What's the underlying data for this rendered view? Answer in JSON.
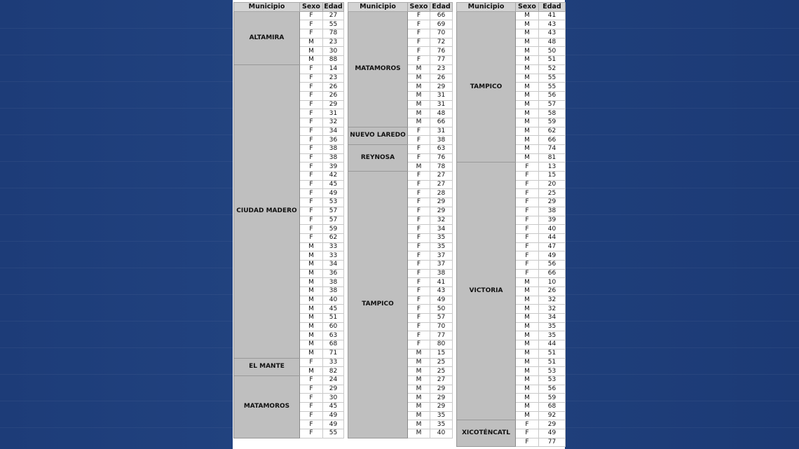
{
  "headers": {
    "municipio": "Municipio",
    "sexo": "Sexo",
    "edad": "Edad"
  },
  "tables": [
    {
      "groups": [
        {
          "municipio": "ALTAMIRA",
          "rows": [
            [
              "F",
              "27"
            ],
            [
              "F",
              "55"
            ],
            [
              "F",
              "78"
            ],
            [
              "M",
              "23"
            ],
            [
              "M",
              "30"
            ],
            [
              "M",
              "88"
            ]
          ]
        },
        {
          "municipio": "CIUDAD MADERO",
          "rows": [
            [
              "F",
              "14"
            ],
            [
              "F",
              "23"
            ],
            [
              "F",
              "26"
            ],
            [
              "F",
              "26"
            ],
            [
              "F",
              "29"
            ],
            [
              "F",
              "31"
            ],
            [
              "F",
              "32"
            ],
            [
              "F",
              "34"
            ],
            [
              "F",
              "36"
            ],
            [
              "F",
              "38"
            ],
            [
              "F",
              "38"
            ],
            [
              "F",
              "39"
            ],
            [
              "F",
              "42"
            ],
            [
              "F",
              "45"
            ],
            [
              "F",
              "49"
            ],
            [
              "F",
              "53"
            ],
            [
              "F",
              "57"
            ],
            [
              "F",
              "57"
            ],
            [
              "F",
              "59"
            ],
            [
              "F",
              "62"
            ],
            [
              "M",
              "33"
            ],
            [
              "M",
              "33"
            ],
            [
              "M",
              "34"
            ],
            [
              "M",
              "36"
            ],
            [
              "M",
              "38"
            ],
            [
              "M",
              "38"
            ],
            [
              "M",
              "40"
            ],
            [
              "M",
              "45"
            ],
            [
              "M",
              "51"
            ],
            [
              "M",
              "60"
            ],
            [
              "M",
              "63"
            ],
            [
              "M",
              "68"
            ],
            [
              "M",
              "71"
            ]
          ]
        },
        {
          "municipio": "EL MANTE",
          "rows": [
            [
              "F",
              "33"
            ],
            [
              "M",
              "82"
            ]
          ]
        },
        {
          "municipio": "MATAMOROS",
          "rows": [
            [
              "F",
              "24"
            ],
            [
              "F",
              "29"
            ],
            [
              "F",
              "30"
            ],
            [
              "F",
              "45"
            ],
            [
              "F",
              "49"
            ],
            [
              "F",
              "49"
            ],
            [
              "F",
              "55"
            ]
          ]
        }
      ]
    },
    {
      "groups": [
        {
          "municipio": "MATAMOROS",
          "rows": [
            [
              "F",
              "66"
            ],
            [
              "F",
              "69"
            ],
            [
              "F",
              "70"
            ],
            [
              "F",
              "72"
            ],
            [
              "F",
              "76"
            ],
            [
              "F",
              "77"
            ],
            [
              "M",
              "23"
            ],
            [
              "M",
              "26"
            ],
            [
              "M",
              "29"
            ],
            [
              "M",
              "31"
            ],
            [
              "M",
              "31"
            ],
            [
              "M",
              "48"
            ],
            [
              "M",
              "66"
            ]
          ]
        },
        {
          "municipio": "NUEVO LAREDO",
          "rows": [
            [
              "F",
              "31"
            ],
            [
              "F",
              "38"
            ]
          ]
        },
        {
          "municipio": "REYNOSA",
          "rows": [
            [
              "F",
              "63"
            ],
            [
              "F",
              "76"
            ],
            [
              "M",
              "78"
            ]
          ]
        },
        {
          "municipio": "TAMPICO",
          "rows": [
            [
              "F",
              "27"
            ],
            [
              "F",
              "27"
            ],
            [
              "F",
              "28"
            ],
            [
              "F",
              "29"
            ],
            [
              "F",
              "29"
            ],
            [
              "F",
              "32"
            ],
            [
              "F",
              "34"
            ],
            [
              "F",
              "35"
            ],
            [
              "F",
              "35"
            ],
            [
              "F",
              "37"
            ],
            [
              "F",
              "37"
            ],
            [
              "F",
              "38"
            ],
            [
              "F",
              "41"
            ],
            [
              "F",
              "43"
            ],
            [
              "F",
              "49"
            ],
            [
              "F",
              "50"
            ],
            [
              "F",
              "57"
            ],
            [
              "F",
              "70"
            ],
            [
              "F",
              "77"
            ],
            [
              "F",
              "80"
            ],
            [
              "M",
              "15"
            ],
            [
              "M",
              "25"
            ],
            [
              "M",
              "25"
            ],
            [
              "M",
              "27"
            ],
            [
              "M",
              "29"
            ],
            [
              "M",
              "29"
            ],
            [
              "M",
              "29"
            ],
            [
              "M",
              "35"
            ],
            [
              "M",
              "35"
            ],
            [
              "M",
              "40"
            ]
          ]
        }
      ]
    },
    {
      "groups": [
        {
          "municipio": "TAMPICO",
          "rows": [
            [
              "M",
              "41"
            ],
            [
              "M",
              "43"
            ],
            [
              "M",
              "43"
            ],
            [
              "M",
              "48"
            ],
            [
              "M",
              "50"
            ],
            [
              "M",
              "51"
            ],
            [
              "M",
              "52"
            ],
            [
              "M",
              "55"
            ],
            [
              "M",
              "55"
            ],
            [
              "M",
              "56"
            ],
            [
              "M",
              "57"
            ],
            [
              "M",
              "58"
            ],
            [
              "M",
              "59"
            ],
            [
              "M",
              "62"
            ],
            [
              "M",
              "66"
            ],
            [
              "M",
              "74"
            ],
            [
              "M",
              "81"
            ]
          ]
        },
        {
          "municipio": "VICTORIA",
          "rows": [
            [
              "F",
              "13"
            ],
            [
              "F",
              "15"
            ],
            [
              "F",
              "20"
            ],
            [
              "F",
              "25"
            ],
            [
              "F",
              "29"
            ],
            [
              "F",
              "38"
            ],
            [
              "F",
              "39"
            ],
            [
              "F",
              "40"
            ],
            [
              "F",
              "44"
            ],
            [
              "F",
              "47"
            ],
            [
              "F",
              "49"
            ],
            [
              "F",
              "56"
            ],
            [
              "F",
              "66"
            ],
            [
              "M",
              "10"
            ],
            [
              "M",
              "26"
            ],
            [
              "M",
              "32"
            ],
            [
              "M",
              "32"
            ],
            [
              "M",
              "34"
            ],
            [
              "M",
              "35"
            ],
            [
              "M",
              "35"
            ],
            [
              "M",
              "44"
            ],
            [
              "M",
              "51"
            ],
            [
              "M",
              "51"
            ],
            [
              "M",
              "53"
            ],
            [
              "M",
              "53"
            ],
            [
              "M",
              "56"
            ],
            [
              "M",
              "59"
            ],
            [
              "M",
              "68"
            ],
            [
              "M",
              "92"
            ]
          ]
        },
        {
          "municipio": "XICOTÉNCATL",
          "rows": [
            [
              "F",
              "29"
            ],
            [
              "F",
              "49"
            ],
            [
              "F",
              "77"
            ]
          ]
        }
      ]
    }
  ]
}
